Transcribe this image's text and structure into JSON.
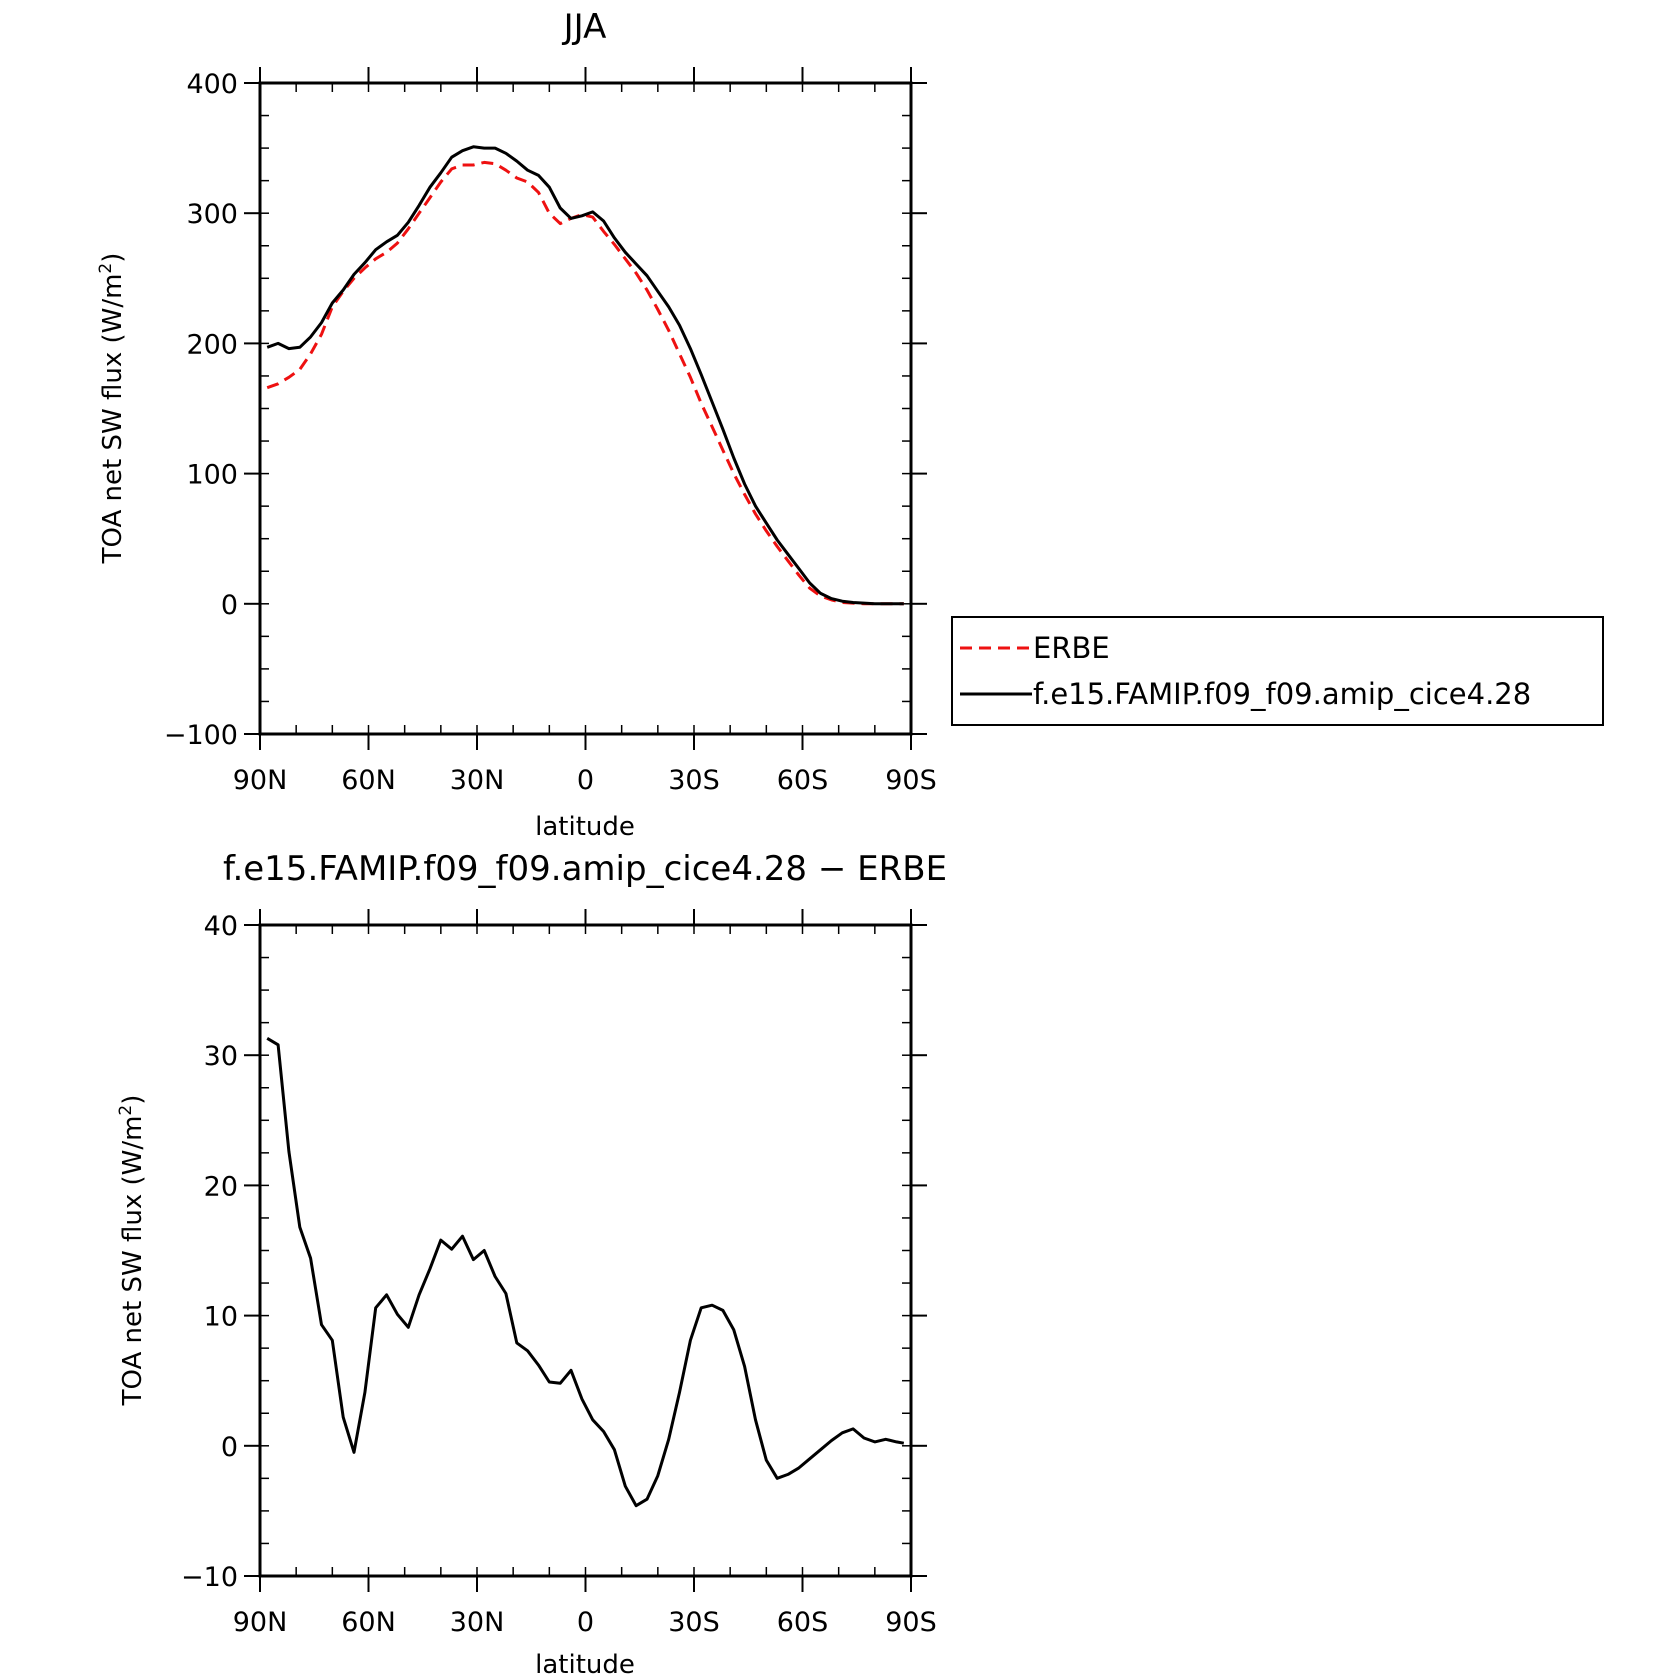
{
  "chart_data": [
    {
      "type": "line",
      "title": "JJA",
      "xlabel": "latitude",
      "ylabel": "TOA net SW flux (W/m²)",
      "ylabel_parts": {
        "base": "TOA net SW flux (W/m",
        "sup": "2",
        "end": ")"
      },
      "ylim": [
        -100,
        400
      ],
      "y_ticks": [
        -100,
        0,
        100,
        200,
        300,
        400
      ],
      "y_tick_labels": [
        "−100",
        "0",
        "100",
        "200",
        "300",
        "400"
      ],
      "x_ticks": [
        90,
        60,
        30,
        0,
        -30,
        -60,
        -90
      ],
      "x_tick_labels": [
        "90N",
        "60N",
        "30N",
        "0",
        "30S",
        "60S",
        "90S"
      ],
      "x_direction": "north-to-south",
      "legend": {
        "placement": "outside-right",
        "entries": [
          {
            "label": "ERBE",
            "color": "#ee1111",
            "dash": true
          },
          {
            "label": "f.e15.FAMIP.f09_f09.amip_cice4.28",
            "color": "#000000",
            "dash": false
          }
        ]
      },
      "series": [
        {
          "name": "ERBE",
          "color": "#ee1111",
          "style": "dashed",
          "x": [
            88,
            85,
            82,
            79,
            76,
            73,
            70,
            67,
            64,
            61,
            58,
            55,
            52,
            49,
            46,
            43,
            40,
            37,
            34,
            31,
            28,
            25,
            22,
            19,
            16,
            13,
            10,
            7,
            4,
            1,
            -2,
            -5,
            -8,
            -11,
            -14,
            -17,
            -20,
            -23,
            -26,
            -29,
            -32,
            -35,
            -38,
            -41,
            -44,
            -47,
            -50,
            -53,
            -56,
            -59,
            -62,
            -65,
            -68,
            -71,
            -74,
            -77,
            -80,
            -83,
            -86,
            -88
          ],
          "values": [
            166,
            169,
            174,
            180,
            192,
            207,
            228,
            240,
            250,
            258,
            265,
            270,
            277,
            288,
            300,
            312,
            324,
            334,
            337,
            337,
            339,
            338,
            333,
            327,
            324,
            316,
            300,
            292,
            296,
            299,
            297,
            286,
            276,
            265,
            254,
            241,
            226,
            210,
            192,
            174,
            154,
            136,
            118,
            100,
            84,
            69,
            56,
            44,
            33,
            22,
            12,
            6,
            3,
            1,
            0.5,
            0,
            0,
            0,
            0,
            0
          ]
        },
        {
          "name": "f.e15.FAMIP.f09_f09.amip_cice4.28",
          "color": "#000000",
          "style": "solid",
          "x": [
            88,
            85,
            82,
            79,
            76,
            73,
            70,
            67,
            64,
            61,
            58,
            55,
            52,
            49,
            46,
            43,
            40,
            37,
            34,
            31,
            28,
            25,
            22,
            19,
            16,
            13,
            10,
            7,
            4,
            1,
            -2,
            -5,
            -8,
            -11,
            -14,
            -17,
            -20,
            -23,
            -26,
            -29,
            -32,
            -35,
            -38,
            -41,
            -44,
            -47,
            -50,
            -53,
            -56,
            -59,
            -62,
            -65,
            -68,
            -71,
            -74,
            -77,
            -80,
            -83,
            -86,
            -88
          ],
          "values": [
            197,
            200,
            196,
            197,
            205,
            216,
            231,
            241,
            253,
            262,
            272,
            278,
            283,
            293,
            306,
            320,
            331,
            343,
            348,
            351,
            350,
            350,
            346,
            340,
            333,
            329,
            320,
            304,
            296,
            298,
            301,
            294,
            281,
            270,
            261,
            252,
            240,
            228,
            214,
            196,
            176,
            155,
            134,
            112,
            92,
            75,
            62,
            49,
            38,
            27,
            16,
            8,
            4,
            2,
            1,
            0.5,
            0,
            0,
            0,
            0
          ]
        }
      ]
    },
    {
      "type": "line",
      "title": "f.e15.FAMIP.f09_f09.amip_cice4.28 − ERBE",
      "xlabel": "latitude",
      "ylabel": "TOA net SW flux (W/m²)",
      "ylabel_parts": {
        "base": "TOA net SW flux (W/m",
        "sup": "2",
        "end": ")"
      },
      "ylim": [
        -10,
        40
      ],
      "y_ticks": [
        -10,
        0,
        10,
        20,
        30,
        40
      ],
      "y_tick_labels": [
        "−10",
        "0",
        "10",
        "20",
        "30",
        "40"
      ],
      "x_ticks": [
        90,
        60,
        30,
        0,
        -30,
        -60,
        -90
      ],
      "x_tick_labels": [
        "90N",
        "60N",
        "30N",
        "0",
        "30S",
        "60S",
        "90S"
      ],
      "x_direction": "north-to-south",
      "series": [
        {
          "color": "#000000",
          "style": "solid",
          "x": [
            88,
            85,
            82,
            79,
            76,
            73,
            70,
            67,
            64,
            61,
            58,
            55,
            52,
            49,
            46,
            43,
            40,
            37,
            34,
            31,
            28,
            25,
            22,
            19,
            16,
            13,
            10,
            7,
            4,
            1,
            -2,
            -5,
            -8,
            -11,
            -14,
            -17,
            -20,
            -23,
            -26,
            -29,
            -32,
            -35,
            -38,
            -41,
            -44,
            -47,
            -50,
            -53,
            -56,
            -59,
            -62,
            -65,
            -68,
            -71,
            -74,
            -77,
            -80,
            -83,
            -86,
            -88
          ],
          "values": [
            31.3,
            30.8,
            22.6,
            16.8,
            14.4,
            9.3,
            8.1,
            2.2,
            -0.5,
            4.1,
            10.6,
            11.6,
            10.1,
            9.1,
            11.6,
            13.6,
            15.8,
            15.1,
            16.1,
            14.3,
            15.0,
            13.0,
            11.7,
            7.9,
            7.3,
            6.2,
            4.9,
            4.8,
            5.8,
            3.6,
            2.0,
            1.1,
            -0.3,
            -3.1,
            -4.6,
            -4.1,
            -2.3,
            0.5,
            4.1,
            8.1,
            10.6,
            10.8,
            10.4,
            8.9,
            6.1,
            2.0,
            -1.1,
            -2.5,
            -2.2,
            -1.7,
            -1.0,
            -0.3,
            0.4,
            1.0,
            1.3,
            0.6,
            0.3,
            0.5,
            0.3,
            0.2
          ]
        }
      ]
    }
  ]
}
